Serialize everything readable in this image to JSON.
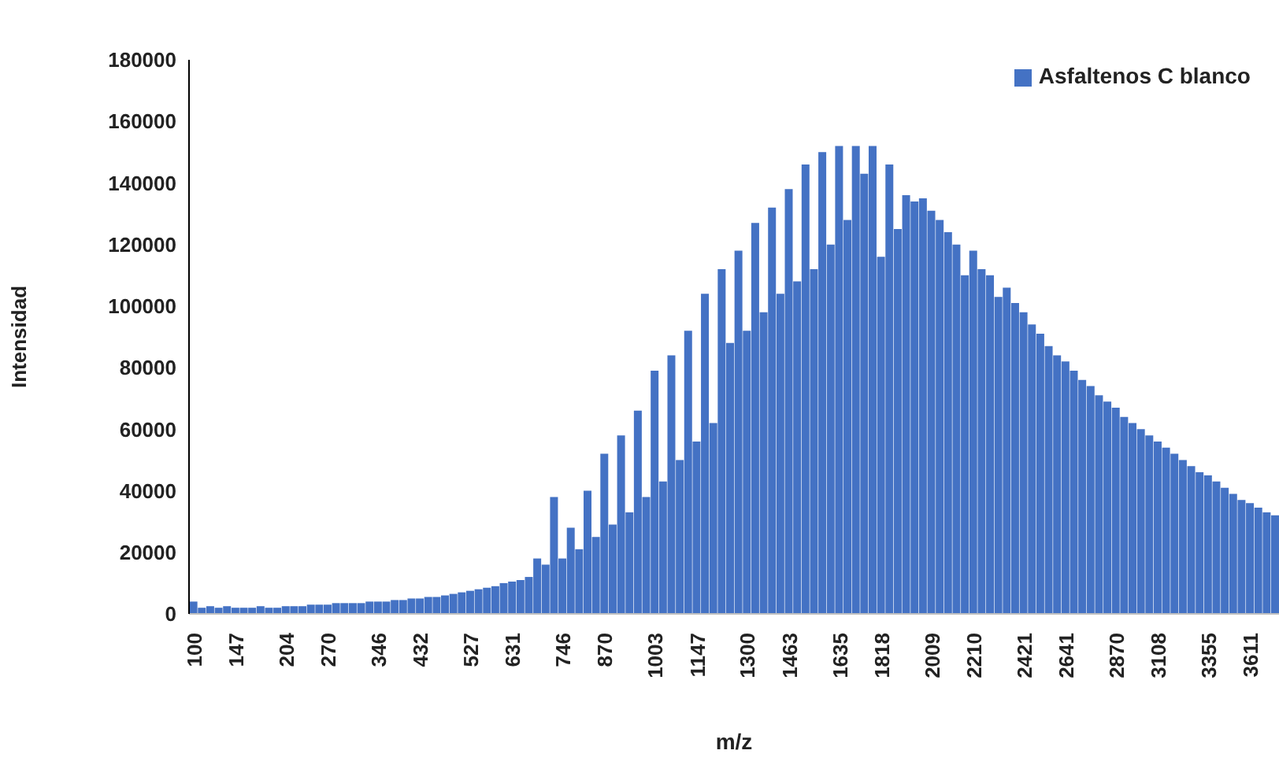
{
  "chart_data": {
    "type": "bar",
    "xlabel": "m/z",
    "ylabel": "Intensidad",
    "categories": [
      "100",
      null,
      null,
      null,
      null,
      "147",
      null,
      null,
      null,
      null,
      null,
      "204",
      null,
      null,
      null,
      null,
      "270",
      null,
      null,
      null,
      null,
      null,
      "346",
      null,
      null,
      null,
      null,
      "432",
      null,
      null,
      null,
      null,
      null,
      "527",
      null,
      null,
      null,
      null,
      "631",
      null,
      null,
      null,
      null,
      null,
      "746",
      null,
      null,
      null,
      null,
      "870",
      null,
      null,
      null,
      null,
      null,
      "1003",
      null,
      null,
      null,
      null,
      "1147",
      null,
      null,
      null,
      null,
      null,
      "1300",
      null,
      null,
      null,
      null,
      "1463",
      null,
      null,
      null,
      null,
      null,
      "1635",
      null,
      null,
      null,
      null,
      "1818",
      null,
      null,
      null,
      null,
      null,
      "2009",
      null,
      null,
      null,
      null,
      "2210",
      null,
      null,
      null,
      null,
      null,
      "2421",
      null,
      null,
      null,
      null,
      "2641",
      null,
      null,
      null,
      null,
      null,
      "2870",
      null,
      null,
      null,
      null,
      "3108",
      null,
      null,
      null,
      null,
      null,
      "3355",
      null,
      null,
      null,
      null,
      "3611",
      null,
      null,
      null
    ],
    "series": [
      {
        "name": "Asfaltenos C blanco",
        "color": "#4472c4",
        "values": [
          4000,
          2000,
          2500,
          2000,
          2500,
          2000,
          2000,
          2000,
          2500,
          2000,
          2000,
          2500,
          2500,
          2500,
          3000,
          3000,
          3000,
          3500,
          3500,
          3500,
          3500,
          4000,
          4000,
          4000,
          4500,
          4500,
          5000,
          5000,
          5500,
          5500,
          6000,
          6500,
          7000,
          7500,
          8000,
          8500,
          9000,
          10000,
          10500,
          11000,
          12000,
          18000,
          16000,
          38000,
          18000,
          28000,
          21000,
          40000,
          25000,
          52000,
          29000,
          58000,
          33000,
          66000,
          38000,
          79000,
          43000,
          84000,
          50000,
          92000,
          56000,
          104000,
          62000,
          112000,
          88000,
          118000,
          92000,
          127000,
          98000,
          132000,
          104000,
          138000,
          108000,
          146000,
          112000,
          150000,
          120000,
          152000,
          128000,
          152000,
          143000,
          152000,
          116000,
          146000,
          125000,
          136000,
          134000,
          135000,
          131000,
          128000,
          124000,
          120000,
          110000,
          118000,
          112000,
          110000,
          103000,
          106000,
          101000,
          98000,
          94000,
          91000,
          87000,
          84000,
          82000,
          79000,
          76000,
          74000,
          71000,
          69000,
          67000,
          64000,
          62000,
          60000,
          58000,
          56000,
          54000,
          52000,
          50000,
          48000,
          46000,
          45000,
          43000,
          41000,
          39000,
          37000,
          36000,
          34500,
          33000,
          32000
        ]
      }
    ],
    "ylim": [
      0,
      180000
    ],
    "yticks": [
      0,
      20000,
      40000,
      60000,
      80000,
      100000,
      120000,
      140000,
      160000,
      180000
    ],
    "grid": false,
    "legend": "top right"
  }
}
